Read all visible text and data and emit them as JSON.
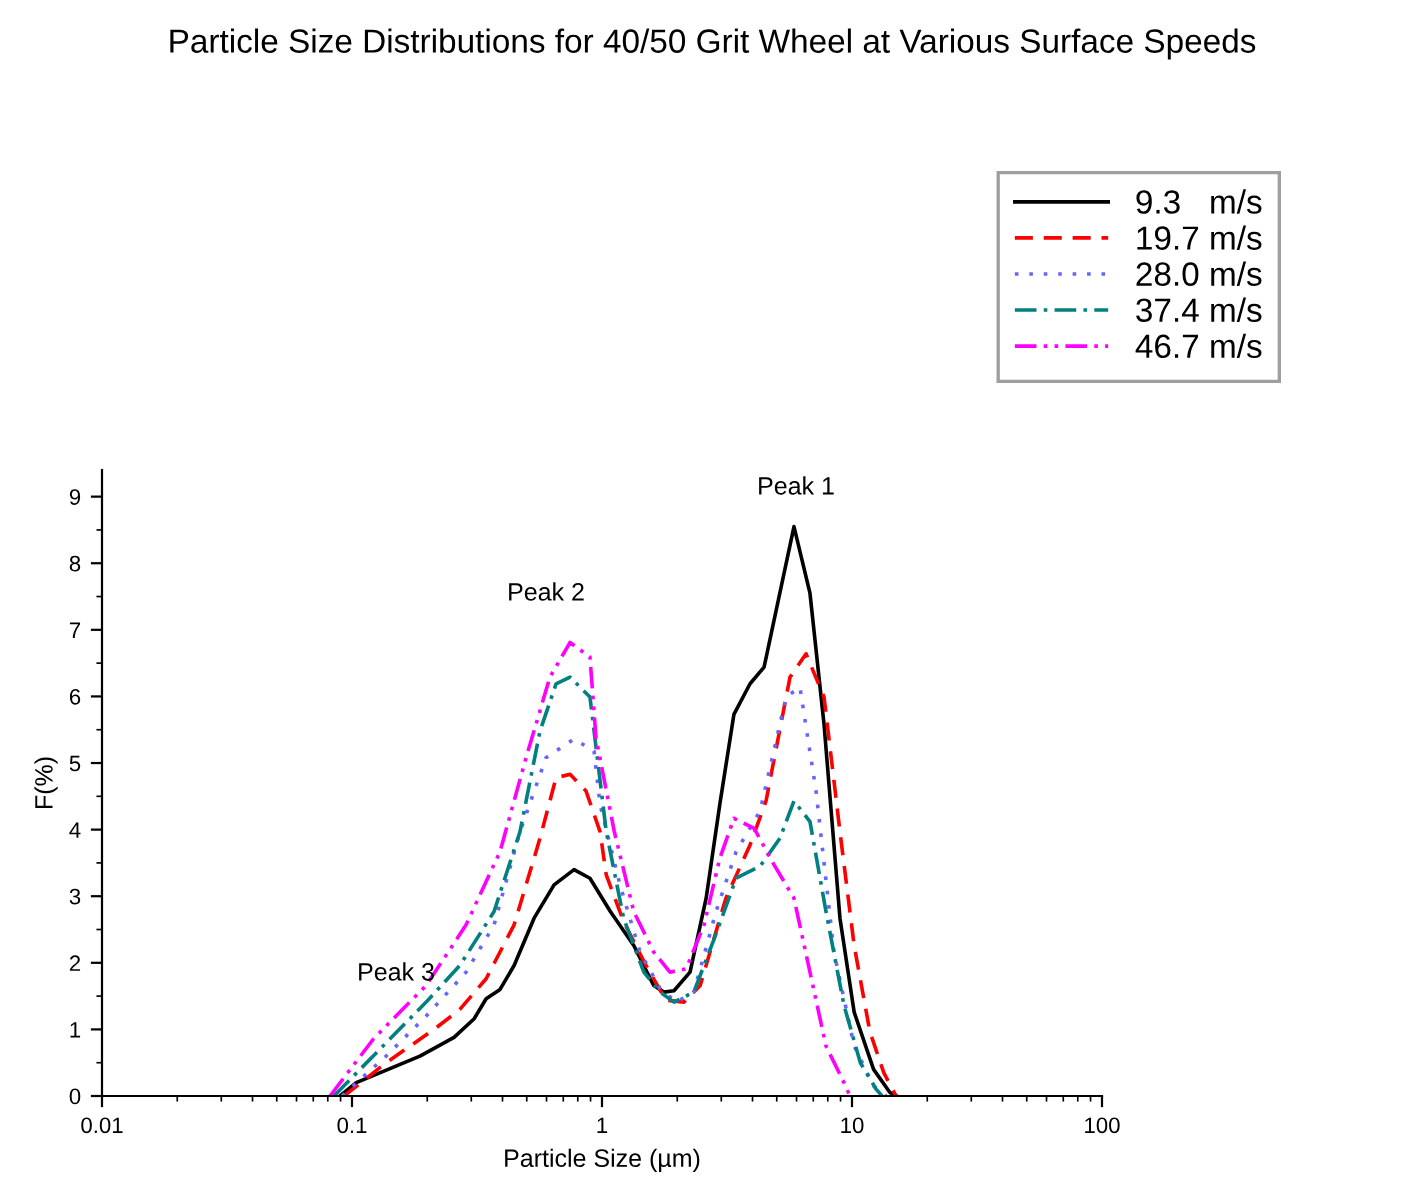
{
  "chart_data": {
    "type": "line",
    "title": "Particle Size Distributions for 40/50 Grit Wheel at Various Surface Speeds",
    "xlabel": "Particle Size (µm)",
    "ylabel": "F(%)",
    "log": "x",
    "xlim": [
      0.01,
      100
    ],
    "xticks": [
      0.01,
      0.1,
      1,
      10,
      100
    ],
    "ylim": [
      0,
      9.4
    ],
    "yticks": [
      0,
      1,
      2,
      3,
      4,
      5,
      6,
      7,
      8,
      9
    ],
    "grid": false,
    "legend": "top right",
    "marker": "none",
    "series": [
      {
        "name": "9.3   m/s",
        "color": "#000000",
        "line_style": "solid",
        "x": [
          0.0895,
          0.104,
          0.187,
          0.256,
          0.308,
          0.344,
          0.391,
          0.445,
          0.535,
          0.643,
          0.773,
          0.895,
          1.08,
          1.34,
          1.61,
          1.77,
          1.94,
          2.25,
          2.61,
          2.96,
          3.37,
          3.91,
          4.45,
          5.86,
          6.79,
          7.73,
          8.95,
          10.2,
          12.2,
          14.2,
          15.1
        ],
        "values": [
          0,
          0.2,
          0.6,
          0.88,
          1.16,
          1.46,
          1.6,
          1.96,
          2.67,
          3.17,
          3.4,
          3.27,
          2.77,
          2.26,
          1.66,
          1.56,
          1.58,
          1.86,
          2.97,
          4.38,
          5.73,
          6.19,
          6.44,
          8.55,
          7.55,
          5.58,
          2.67,
          1.26,
          0.4,
          0.05,
          0
        ]
      },
      {
        "name": "19.7 m/s",
        "color": "#ff0000",
        "line_style": "dashed",
        "x": [
          0.0929,
          0.137,
          0.213,
          0.27,
          0.344,
          0.445,
          0.565,
          0.655,
          0.745,
          0.863,
          0.982,
          1.04,
          1.22,
          1.5,
          1.8,
          2.13,
          2.47,
          3.13,
          3.91,
          4.53,
          5.65,
          6.55,
          7.73,
          8.95,
          10.2,
          11.8,
          13.4,
          15.0
        ],
        "values": [
          0,
          0.5,
          1.0,
          1.3,
          1.76,
          2.57,
          3.87,
          4.78,
          4.83,
          4.58,
          3.97,
          3.32,
          2.62,
          1.96,
          1.44,
          1.41,
          1.66,
          2.97,
          3.77,
          4.43,
          6.29,
          6.64,
          5.99,
          3.97,
          2.26,
          0.96,
          0.35,
          0
        ]
      },
      {
        "name": "28.0 m/s",
        "color": "#6666ff",
        "line_style": "dotted",
        "x": [
          0.0912,
          0.137,
          0.198,
          0.286,
          0.37,
          0.47,
          0.597,
          0.773,
          0.929,
          0.982,
          1.18,
          1.42,
          1.71,
          1.98,
          2.33,
          2.86,
          3.44,
          4.29,
          5.45,
          6.19,
          7.18,
          8.47,
          10.2,
          12.2,
          13.7
        ],
        "values": [
          0,
          0.6,
          1.2,
          1.86,
          2.57,
          3.97,
          5.08,
          5.36,
          5.18,
          4.38,
          3.17,
          2.16,
          1.61,
          1.41,
          1.56,
          2.77,
          3.67,
          4.28,
          5.99,
          6.14,
          4.58,
          2.16,
          0.75,
          0.15,
          0
        ]
      },
      {
        "name": "37.4 m/s",
        "color": "#008080",
        "line_style": "dashdot",
        "x": [
          0.0847,
          0.129,
          0.198,
          0.27,
          0.37,
          0.47,
          0.565,
          0.655,
          0.745,
          0.895,
          1.04,
          1.22,
          1.47,
          1.71,
          1.94,
          2.33,
          2.81,
          3.44,
          4.29,
          5.15,
          5.86,
          6.79,
          7.87,
          9.29,
          10.8,
          12.5,
          13.2
        ],
        "values": [
          0,
          0.7,
          1.41,
          1.96,
          2.77,
          3.97,
          5.48,
          6.19,
          6.29,
          5.99,
          3.97,
          2.67,
          1.86,
          1.56,
          1.41,
          1.56,
          2.36,
          3.27,
          3.45,
          3.87,
          4.43,
          4.12,
          2.77,
          1.36,
          0.5,
          0.1,
          0
        ]
      },
      {
        "name": "46.7 m/s",
        "color": "#ff00ff",
        "line_style": "dashdotdot",
        "x": [
          0.0817,
          0.122,
          0.198,
          0.286,
          0.391,
          0.497,
          0.619,
          0.745,
          0.895,
          0.946,
          1.12,
          1.34,
          1.61,
          1.87,
          2.17,
          2.56,
          2.96,
          3.37,
          4.06,
          4.88,
          5.86,
          6.79,
          7.87,
          9.29,
          9.82
        ],
        "values": [
          0,
          0.86,
          1.66,
          2.57,
          3.67,
          5.08,
          6.29,
          6.81,
          6.59,
          5.38,
          3.97,
          2.77,
          2.16,
          1.86,
          1.91,
          2.57,
          3.57,
          4.17,
          4.02,
          3.47,
          2.97,
          1.86,
          0.75,
          0.2,
          0
        ]
      }
    ],
    "annotations": [
      "Peak 1",
      "Peak 2",
      "Peak 3"
    ]
  }
}
